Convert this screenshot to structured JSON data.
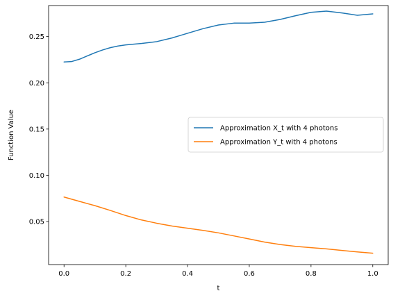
{
  "chart_data": {
    "type": "line",
    "title": "",
    "xlabel": "t",
    "ylabel": "Function Value",
    "xlim": [
      -0.05,
      1.05
    ],
    "ylim": [
      0.0035,
      0.2835
    ],
    "xticks": [
      0.0,
      0.2,
      0.4,
      0.6,
      0.8,
      1.0
    ],
    "xtick_labels": [
      "0.0",
      "0.2",
      "0.4",
      "0.6",
      "0.8",
      "1.0"
    ],
    "yticks": [
      0.05,
      0.1,
      0.15,
      0.2,
      0.25
    ],
    "ytick_labels": [
      "0.05",
      "0.10",
      "0.15",
      "0.20",
      "0.25"
    ],
    "grid": false,
    "legend_position": "center-right",
    "series": [
      {
        "name": "Approximation X_t with 4 photons",
        "color": "#1f77b4",
        "x": [
          0.0,
          0.025,
          0.05,
          0.075,
          0.1,
          0.125,
          0.15,
          0.175,
          0.2,
          0.25,
          0.3,
          0.35,
          0.4,
          0.45,
          0.5,
          0.55,
          0.6,
          0.65,
          0.7,
          0.75,
          0.8,
          0.85,
          0.9,
          0.95,
          1.0
        ],
        "y": [
          0.2225,
          0.223,
          0.2255,
          0.229,
          0.2325,
          0.2355,
          0.238,
          0.2398,
          0.241,
          0.2425,
          0.2445,
          0.2485,
          0.2535,
          0.2585,
          0.2625,
          0.2645,
          0.2645,
          0.2655,
          0.2685,
          0.2725,
          0.2762,
          0.2775,
          0.2755,
          0.273,
          0.2745
        ]
      },
      {
        "name": "Approximation Y_t with 4 photons",
        "color": "#ff7f0e",
        "x": [
          0.0,
          0.05,
          0.1,
          0.15,
          0.2,
          0.25,
          0.3,
          0.35,
          0.4,
          0.45,
          0.5,
          0.55,
          0.6,
          0.65,
          0.7,
          0.75,
          0.8,
          0.85,
          0.9,
          0.95,
          1.0
        ],
        "y": [
          0.0765,
          0.0718,
          0.0672,
          0.062,
          0.0565,
          0.0518,
          0.0482,
          0.0452,
          0.0428,
          0.0405,
          0.0378,
          0.0345,
          0.0312,
          0.0278,
          0.0252,
          0.0232,
          0.0218,
          0.0205,
          0.0188,
          0.0172,
          0.0158
        ]
      }
    ]
  }
}
